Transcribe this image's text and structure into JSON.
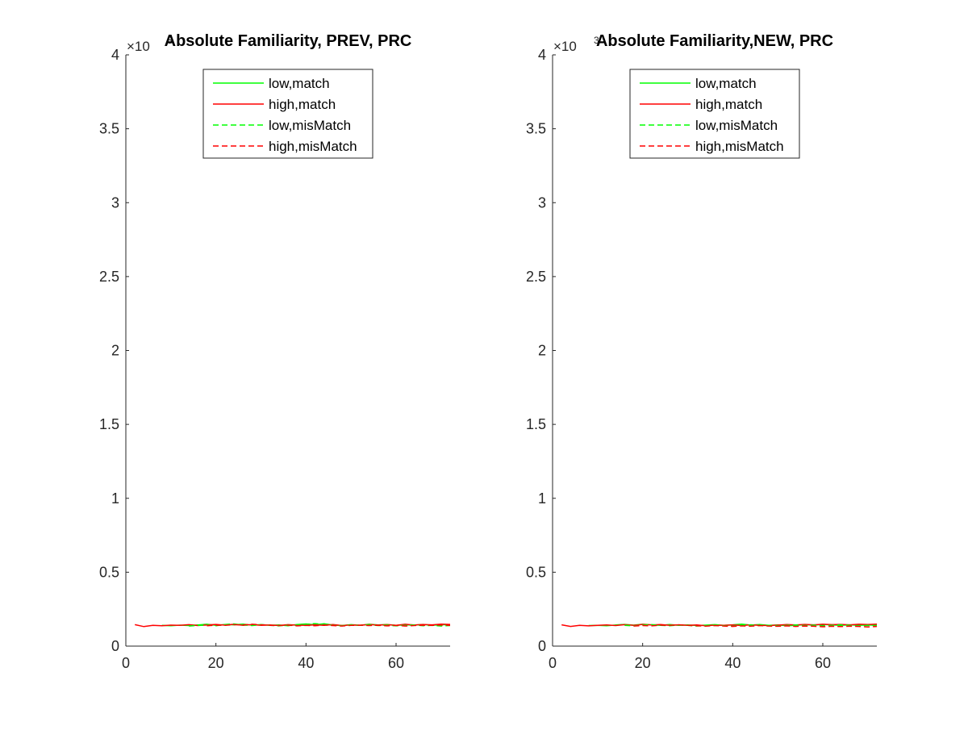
{
  "chart_data": [
    {
      "type": "line",
      "title": "Absolute Familiarity, PREV, PRC",
      "exponent_label": "×10",
      "exponent": "3",
      "xlabel": "",
      "ylabel": "",
      "xlim": [
        0,
        72
      ],
      "ylim": [
        0,
        4
      ],
      "xticks": [
        "0",
        "20",
        "40",
        "60"
      ],
      "xtick_values": [
        0,
        20,
        40,
        60
      ],
      "yticks": [
        "0",
        "0.5",
        "1",
        "1.5",
        "2",
        "2.5",
        "3",
        "3.5",
        "4"
      ],
      "ytick_values": [
        0,
        0.5,
        1,
        1.5,
        2,
        2.5,
        3,
        3.5,
        4
      ],
      "legend_position": "top-center",
      "series": [
        {
          "name": "low,match",
          "color": "#00ff00",
          "dash": "solid",
          "x": [
            8,
            10,
            12,
            14,
            16,
            18,
            20,
            22,
            24,
            26,
            28,
            30,
            32,
            34,
            36,
            38,
            40,
            42,
            44,
            46,
            48,
            50,
            52,
            54,
            56,
            58,
            60,
            62,
            64,
            66,
            68,
            70,
            72
          ],
          "y": [
            0.14,
            0.138,
            0.142,
            0.139,
            0.143,
            0.148,
            0.141,
            0.146,
            0.144,
            0.149,
            0.142,
            0.145,
            0.14,
            0.143,
            0.138,
            0.146,
            0.15,
            0.144,
            0.151,
            0.142,
            0.139,
            0.145,
            0.141,
            0.148,
            0.143,
            0.146,
            0.14,
            0.144,
            0.142,
            0.147,
            0.141,
            0.145,
            0.143
          ]
        },
        {
          "name": "high,match",
          "color": "#ff0000",
          "dash": "solid",
          "x": [
            2,
            4,
            6,
            8,
            10,
            12,
            14,
            16,
            18,
            20,
            22,
            24,
            26,
            28,
            30,
            32,
            34,
            36,
            38,
            40,
            42,
            44,
            46,
            48,
            50,
            52,
            54,
            56,
            58,
            60,
            62,
            64,
            66,
            68,
            70,
            72
          ],
          "y": [
            0.145,
            0.132,
            0.14,
            0.138,
            0.142,
            0.14,
            0.145,
            0.139,
            0.143,
            0.147,
            0.142,
            0.148,
            0.141,
            0.146,
            0.14,
            0.143,
            0.139,
            0.145,
            0.142,
            0.14,
            0.144,
            0.141,
            0.146,
            0.139,
            0.143,
            0.14,
            0.147,
            0.142,
            0.145,
            0.141,
            0.148,
            0.143,
            0.146,
            0.144,
            0.149,
            0.147
          ]
        },
        {
          "name": "low,misMatch",
          "color": "#00ff00",
          "dash": "dashed",
          "x": [
            14,
            16,
            18,
            20,
            22,
            24,
            26,
            28,
            30,
            32,
            34,
            36,
            38,
            40,
            42,
            44,
            46,
            48,
            50,
            52,
            54,
            56,
            58,
            60,
            62,
            64,
            66,
            68,
            70,
            72
          ],
          "y": [
            0.136,
            0.14,
            0.142,
            0.138,
            0.146,
            0.15,
            0.143,
            0.139,
            0.145,
            0.141,
            0.137,
            0.143,
            0.14,
            0.148,
            0.152,
            0.146,
            0.141,
            0.138,
            0.143,
            0.14,
            0.145,
            0.139,
            0.142,
            0.137,
            0.14,
            0.143,
            0.138,
            0.141,
            0.136,
            0.139
          ]
        },
        {
          "name": "high,misMatch",
          "color": "#ff0000",
          "dash": "dashed",
          "x": [
            18,
            20,
            22,
            24,
            26,
            28,
            30,
            32,
            34,
            36,
            38,
            40,
            42,
            44,
            46,
            48,
            50,
            52,
            54,
            56,
            58,
            60,
            62,
            64,
            66,
            68,
            70,
            72
          ],
          "y": [
            0.138,
            0.142,
            0.14,
            0.145,
            0.143,
            0.148,
            0.144,
            0.141,
            0.139,
            0.142,
            0.137,
            0.14,
            0.138,
            0.143,
            0.139,
            0.136,
            0.14,
            0.142,
            0.139,
            0.141,
            0.137,
            0.14,
            0.136,
            0.139,
            0.142,
            0.14,
            0.143,
            0.141
          ]
        }
      ]
    },
    {
      "type": "line",
      "title": "Absolute Familiarity,NEW, PRC",
      "exponent_label": "×10",
      "exponent": "3",
      "xlabel": "",
      "ylabel": "",
      "xlim": [
        0,
        72
      ],
      "ylim": [
        0,
        4
      ],
      "xticks": [
        "0",
        "20",
        "40",
        "60"
      ],
      "xtick_values": [
        0,
        20,
        40,
        60
      ],
      "yticks": [
        "0",
        "0.5",
        "1",
        "1.5",
        "2",
        "2.5",
        "3",
        "3.5",
        "4"
      ],
      "ytick_values": [
        0,
        0.5,
        1,
        1.5,
        2,
        2.5,
        3,
        3.5,
        4
      ],
      "legend_position": "top-center",
      "series": [
        {
          "name": "low,match",
          "color": "#00ff00",
          "dash": "solid",
          "x": [
            8,
            10,
            12,
            14,
            16,
            18,
            20,
            22,
            24,
            26,
            28,
            30,
            32,
            34,
            36,
            38,
            40,
            42,
            44,
            46,
            48,
            50,
            52,
            54,
            56,
            58,
            60,
            62,
            64,
            66,
            68,
            70,
            72
          ],
          "y": [
            0.139,
            0.141,
            0.138,
            0.143,
            0.147,
            0.142,
            0.148,
            0.144,
            0.141,
            0.146,
            0.14,
            0.143,
            0.139,
            0.142,
            0.145,
            0.141,
            0.144,
            0.149,
            0.142,
            0.146,
            0.14,
            0.143,
            0.138,
            0.141,
            0.145,
            0.142,
            0.147,
            0.143,
            0.14,
            0.144,
            0.141,
            0.143,
            0.14
          ]
        },
        {
          "name": "high,match",
          "color": "#ff0000",
          "dash": "solid",
          "x": [
            2,
            4,
            6,
            8,
            10,
            12,
            14,
            16,
            18,
            20,
            22,
            24,
            26,
            28,
            30,
            32,
            34,
            36,
            38,
            40,
            42,
            44,
            46,
            48,
            50,
            52,
            54,
            56,
            58,
            60,
            62,
            64,
            66,
            68,
            70,
            72
          ],
          "y": [
            0.144,
            0.133,
            0.141,
            0.137,
            0.14,
            0.143,
            0.139,
            0.145,
            0.141,
            0.147,
            0.143,
            0.146,
            0.14,
            0.144,
            0.141,
            0.143,
            0.138,
            0.142,
            0.14,
            0.143,
            0.139,
            0.144,
            0.141,
            0.139,
            0.142,
            0.146,
            0.143,
            0.147,
            0.144,
            0.148,
            0.145,
            0.147,
            0.144,
            0.148,
            0.146,
            0.149
          ]
        },
        {
          "name": "low,misMatch",
          "color": "#00ff00",
          "dash": "dashed",
          "x": [
            16,
            18,
            20,
            22,
            24,
            26,
            28,
            30,
            32,
            34,
            36,
            38,
            40,
            42,
            44,
            46,
            48,
            50,
            52,
            54,
            56,
            58,
            60,
            62,
            64,
            66,
            68,
            70,
            72
          ],
          "y": [
            0.14,
            0.137,
            0.142,
            0.145,
            0.141,
            0.138,
            0.143,
            0.14,
            0.136,
            0.139,
            0.142,
            0.138,
            0.135,
            0.14,
            0.143,
            0.139,
            0.141,
            0.137,
            0.14,
            0.143,
            0.139,
            0.142,
            0.138,
            0.141,
            0.144,
            0.14,
            0.137,
            0.14,
            0.138
          ]
        },
        {
          "name": "high,misMatch",
          "color": "#ff0000",
          "dash": "dashed",
          "x": [
            18,
            20,
            22,
            24,
            26,
            28,
            30,
            32,
            34,
            36,
            38,
            40,
            42,
            44,
            46,
            48,
            50,
            52,
            54,
            56,
            58,
            60,
            62,
            64,
            66,
            68,
            70,
            72
          ],
          "y": [
            0.136,
            0.139,
            0.137,
            0.142,
            0.14,
            0.144,
            0.141,
            0.138,
            0.135,
            0.139,
            0.136,
            0.133,
            0.137,
            0.135,
            0.139,
            0.136,
            0.134,
            0.137,
            0.133,
            0.136,
            0.134,
            0.131,
            0.134,
            0.132,
            0.135,
            0.133,
            0.13,
            0.133
          ]
        }
      ]
    }
  ]
}
